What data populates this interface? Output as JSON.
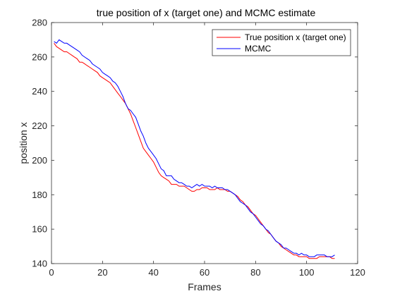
{
  "chart_data": {
    "type": "line",
    "title": "true position of x (target one) and MCMC estimate",
    "xlabel": "Frames",
    "ylabel": "position x",
    "xlim": [
      0,
      120
    ],
    "ylim": [
      140,
      280
    ],
    "xticks": [
      0,
      20,
      40,
      60,
      80,
      100,
      120
    ],
    "yticks": [
      140,
      160,
      180,
      200,
      220,
      240,
      260,
      280
    ],
    "grid": false,
    "legend_position": "top-right",
    "series": [
      {
        "name": "True position x (target one)",
        "color": "#ff0000",
        "x": [
          1,
          2,
          3,
          4,
          5,
          6,
          7,
          8,
          9,
          10,
          11,
          12,
          13,
          14,
          15,
          16,
          17,
          18,
          19,
          20,
          21,
          22,
          23,
          24,
          25,
          26,
          27,
          28,
          29,
          30,
          31,
          32,
          33,
          34,
          35,
          36,
          37,
          38,
          39,
          40,
          41,
          42,
          43,
          44,
          45,
          46,
          47,
          48,
          49,
          50,
          51,
          52,
          53,
          54,
          55,
          56,
          57,
          58,
          59,
          60,
          61,
          62,
          63,
          64,
          65,
          66,
          67,
          68,
          69,
          70,
          71,
          72,
          73,
          74,
          75,
          76,
          77,
          78,
          79,
          80,
          81,
          82,
          83,
          84,
          85,
          86,
          87,
          88,
          89,
          90,
          91,
          92,
          93,
          94,
          95,
          96,
          97,
          98,
          99,
          100,
          101,
          102,
          103,
          104,
          105,
          106,
          107,
          108,
          109,
          110,
          111
        ],
        "y": [
          268,
          266,
          265,
          264,
          263,
          263,
          262,
          261,
          260,
          259,
          257,
          257,
          256,
          255,
          254,
          253,
          252,
          251,
          249,
          248,
          247,
          246,
          245,
          243,
          241,
          239,
          237,
          235,
          233,
          230,
          227,
          223,
          219,
          215,
          211,
          207,
          205,
          203,
          201,
          199,
          196,
          193,
          191,
          190,
          189,
          188,
          186,
          186,
          186,
          185,
          185,
          185,
          184,
          183,
          182,
          182,
          183,
          183,
          184,
          184,
          184,
          183,
          183,
          183,
          184,
          183,
          183,
          183,
          182,
          182,
          181,
          180,
          179,
          177,
          176,
          174,
          173,
          171,
          169,
          168,
          166,
          164,
          162,
          160,
          158,
          157,
          155,
          153,
          152,
          150,
          149,
          148,
          147,
          146,
          145,
          145,
          144,
          144,
          144,
          144,
          143,
          143,
          143,
          143,
          144,
          144,
          144,
          144,
          144,
          143,
          143
        ]
      },
      {
        "name": "MCMC",
        "color": "#0000ff",
        "x": [
          1,
          2,
          3,
          4,
          5,
          6,
          7,
          8,
          9,
          10,
          11,
          12,
          13,
          14,
          15,
          16,
          17,
          18,
          19,
          20,
          21,
          22,
          23,
          24,
          25,
          26,
          27,
          28,
          29,
          30,
          31,
          32,
          33,
          34,
          35,
          36,
          37,
          38,
          39,
          40,
          41,
          42,
          43,
          44,
          45,
          46,
          47,
          48,
          49,
          50,
          51,
          52,
          53,
          54,
          55,
          56,
          57,
          58,
          59,
          60,
          61,
          62,
          63,
          64,
          65,
          66,
          67,
          68,
          69,
          70,
          71,
          72,
          73,
          74,
          75,
          76,
          77,
          78,
          79,
          80,
          81,
          82,
          83,
          84,
          85,
          86,
          87,
          88,
          89,
          90,
          91,
          92,
          93,
          94,
          95,
          96,
          97,
          98,
          99,
          100,
          101,
          102,
          103,
          104,
          105,
          106,
          107,
          108,
          109,
          110,
          111
        ],
        "y": [
          269,
          268,
          270,
          269,
          268,
          268,
          267,
          266,
          265,
          264,
          263,
          261,
          260,
          259,
          258,
          256,
          255,
          254,
          253,
          251,
          250,
          249,
          248,
          246,
          245,
          243,
          240,
          237,
          233,
          230,
          229,
          227,
          225,
          221,
          217,
          214,
          210,
          207,
          205,
          203,
          201,
          198,
          195,
          194,
          191,
          191,
          191,
          189,
          188,
          187,
          187,
          186,
          185,
          185,
          184,
          185,
          186,
          185,
          186,
          185,
          185,
          185,
          184,
          185,
          184,
          184,
          184,
          183,
          183,
          182,
          181,
          180,
          178,
          176,
          175,
          174,
          172,
          170,
          169,
          167,
          165,
          163,
          162,
          160,
          159,
          157,
          155,
          153,
          152,
          151,
          149,
          149,
          148,
          147,
          146,
          146,
          145,
          146,
          145,
          145,
          144,
          144,
          144,
          145,
          145,
          145,
          145,
          144,
          144,
          144,
          145
        ]
      }
    ]
  }
}
